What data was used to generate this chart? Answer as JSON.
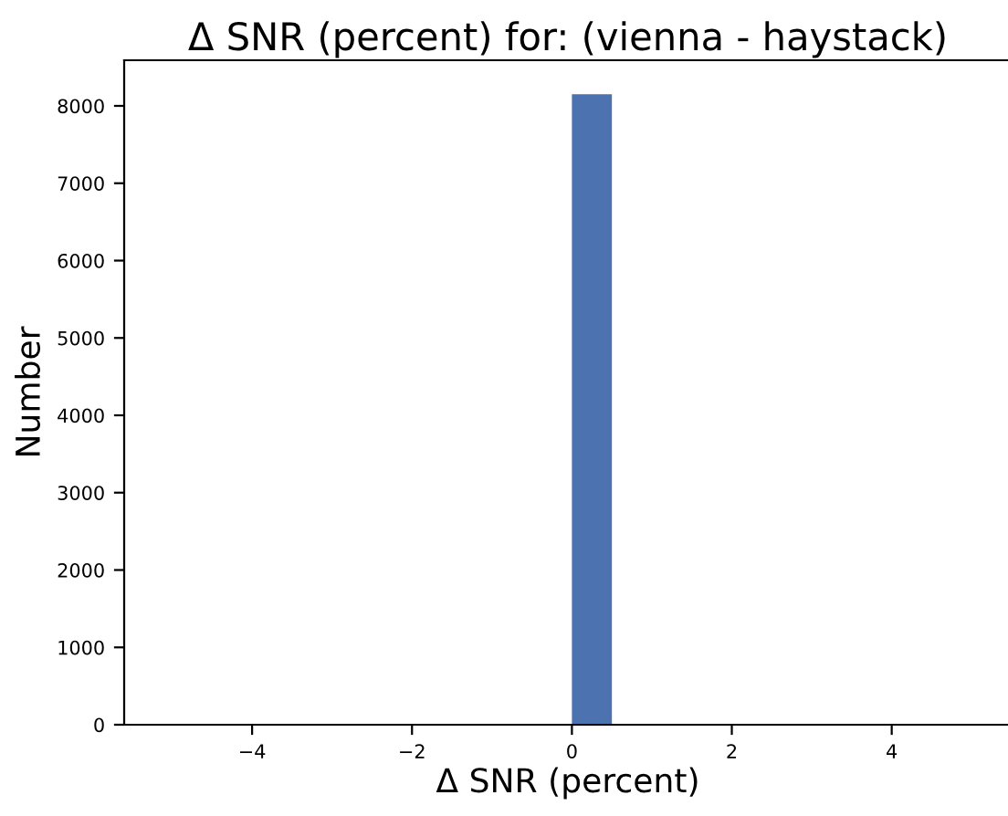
{
  "chart_data": {
    "type": "histogram",
    "title": "Δ SNR (percent) for: (vienna - haystack)",
    "xlabel": "Δ SNR (percent)",
    "ylabel": "Number",
    "bins": [
      0,
      0.5
    ],
    "values": [
      8150
    ],
    "color": "#4c72b0",
    "xlim": [
      -5.6,
      5.5
    ],
    "xticks": [
      {
        "value": -4,
        "label": "−4"
      },
      {
        "value": -2,
        "label": "−2"
      },
      0,
      2,
      4
    ],
    "ylim": [
      0,
      8590
    ],
    "yticks": [
      0,
      1000,
      2000,
      3000,
      4000,
      5000,
      6000,
      7000,
      8000
    ],
    "grid": false
  }
}
